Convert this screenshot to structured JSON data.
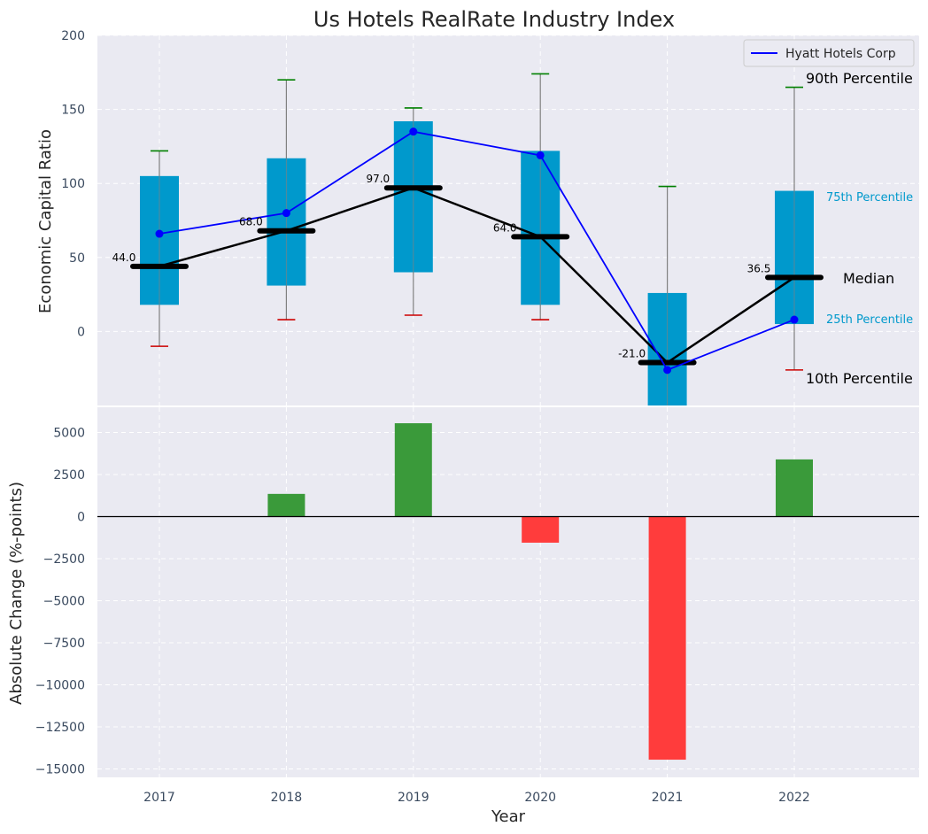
{
  "chart_data": [
    {
      "type": "box",
      "title": "Us Hotels RealRate Industry Index",
      "ylabel": "Economic Capital Ratio",
      "ylim": [
        -50,
        200
      ],
      "yticks": [
        0,
        50,
        100,
        150,
        200
      ],
      "categories": [
        "2017",
        "2018",
        "2019",
        "2020",
        "2021",
        "2022"
      ],
      "p10": [
        -10,
        8,
        11,
        8,
        null,
        -26
      ],
      "p25": [
        18,
        31,
        40,
        18,
        -50,
        5
      ],
      "median": [
        44.0,
        68.0,
        97.0,
        64.0,
        -21.0,
        36.5
      ],
      "p75": [
        105,
        117,
        142,
        122,
        26,
        95
      ],
      "p90": [
        122,
        170,
        151,
        174,
        98,
        165
      ],
      "median_labels": [
        "44.0",
        "68.0",
        "97.0",
        "64.0",
        "-21.0",
        "36.5"
      ],
      "series": [
        {
          "name": "Hyatt Hotels Corp",
          "values": [
            66,
            80,
            135,
            119,
            -26,
            8
          ],
          "color": "#0000ff"
        }
      ],
      "annotations": {
        "p90": "90th Percentile",
        "p75": "75th Percentile",
        "median": "Median",
        "p25": "25th Percentile",
        "p10": "10th Percentile"
      },
      "legend": {
        "position": "top-right"
      },
      "grid": true
    },
    {
      "type": "bar",
      "xlabel": "Year",
      "ylabel": "Absolute Change (%-points)",
      "ylim": [
        -15500,
        6500
      ],
      "yticks": [
        5000,
        2500,
        0,
        -2500,
        -5000,
        -7500,
        -10000,
        -12500,
        -15000
      ],
      "categories": [
        "2017",
        "2018",
        "2019",
        "2020",
        "2021",
        "2022"
      ],
      "values": [
        0,
        1350,
        5550,
        -1550,
        -14450,
        3400
      ],
      "colors": {
        "positive": "#3a9a3a",
        "negative": "#ff3c3c"
      },
      "grid": true
    }
  ],
  "colors": {
    "box": "#0099cc",
    "median_line": "#000000",
    "hyatt_line": "#0000ff",
    "p90_cap": "#008000",
    "p10_cap": "#cc0000",
    "whisker": "#808080"
  }
}
